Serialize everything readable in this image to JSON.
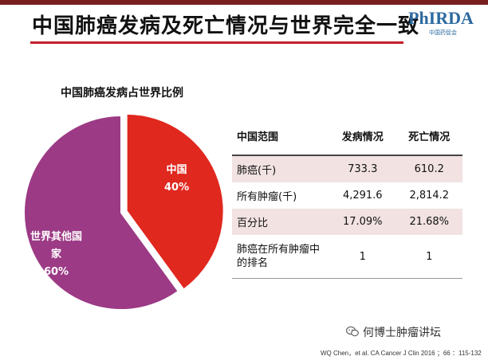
{
  "slide": {
    "title": "中国肺癌发病及死亡情况与世界完全一致",
    "logo_text": "PhIRDA",
    "logo_sub": "中国药促会",
    "watermark": "何博士肿瘤讲坛",
    "citation": "WQ Chen，et al. CA Cancer  J Clin 2016 ；66 ：115-132",
    "colors": {
      "accent": "#c0202a",
      "china": "#e0281f",
      "world": "#9c3a85"
    }
  },
  "chart_data": {
    "type": "pie",
    "title": "中国肺癌发病占世界比例",
    "slices": [
      {
        "label": "中国",
        "value": 40,
        "value_label": "40%",
        "color": "#e0281f"
      },
      {
        "label": "世界其他国家",
        "label_lines": [
          "世界其他国",
          "家"
        ],
        "value": 60,
        "value_label": "60%",
        "color": "#9c3a85"
      }
    ]
  },
  "table": {
    "headers": [
      "中国范围",
      "发病情况",
      "死亡情况"
    ],
    "rows": [
      {
        "cells": [
          "肺癌(千)",
          "733.3",
          "610.2"
        ]
      },
      {
        "cells": [
          "所有肿瘤(千)",
          "4,291.6",
          "2,814.2"
        ]
      },
      {
        "cells": [
          "百分比",
          "17.09%",
          "21.68%"
        ]
      },
      {
        "cells": [
          "肺癌在所有肿瘤中的排名",
          "1",
          "1"
        ]
      }
    ]
  }
}
